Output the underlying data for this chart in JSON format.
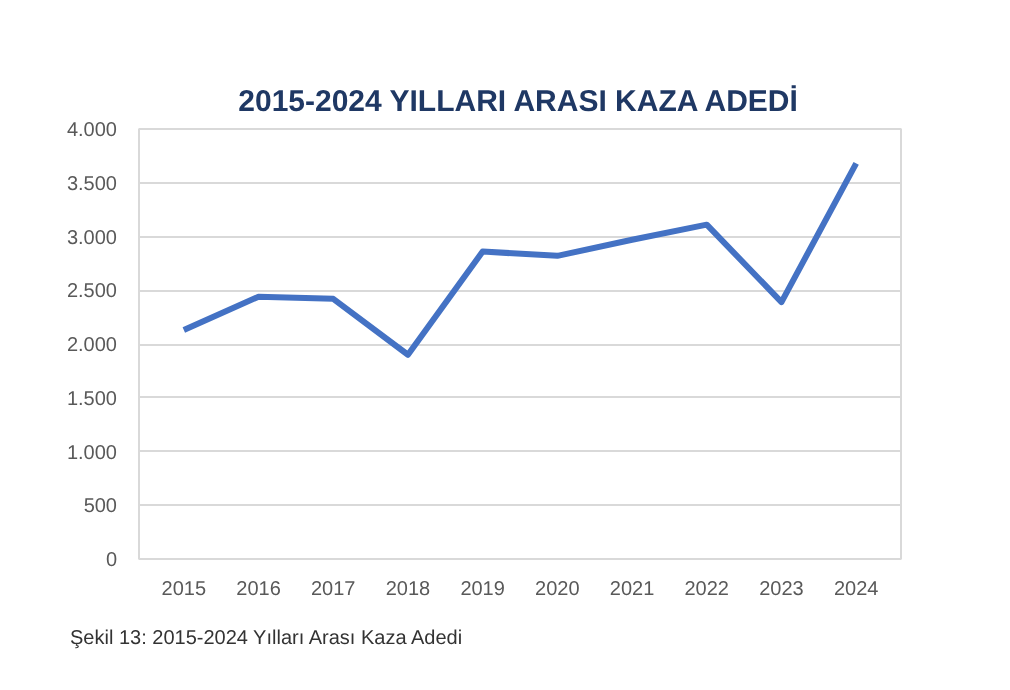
{
  "chart_data": {
    "type": "line",
    "title": "2015-2024 YILLARI ARASI KAZA ADEDİ",
    "categories": [
      "2015",
      "2016",
      "2017",
      "2018",
      "2019",
      "2020",
      "2021",
      "2022",
      "2023",
      "2024"
    ],
    "series": [
      {
        "color": "#4472c4",
        "values": [
          2130,
          2440,
          2420,
          1900,
          2860,
          2820,
          2970,
          3110,
          2390,
          3680
        ]
      }
    ],
    "ylim": [
      0,
      4000
    ],
    "yticks": [
      0,
      500,
      {
        "value": 1000,
        "label": "1.000"
      },
      {
        "value": 1500,
        "label": "1.500"
      },
      {
        "value": 2000,
        "label": "2.000"
      },
      {
        "value": 2500,
        "label": "2.500"
      },
      {
        "value": 3000,
        "label": "3.000"
      },
      {
        "value": 3500,
        "label": "3.500"
      },
      {
        "value": 4000,
        "label": "4.000"
      }
    ],
    "grid": "y",
    "marker": "none",
    "line_style": "solid",
    "annotations": [
      "Şekil 13: 2015-2024 Yılları Arası Kaza Adedi"
    ]
  }
}
